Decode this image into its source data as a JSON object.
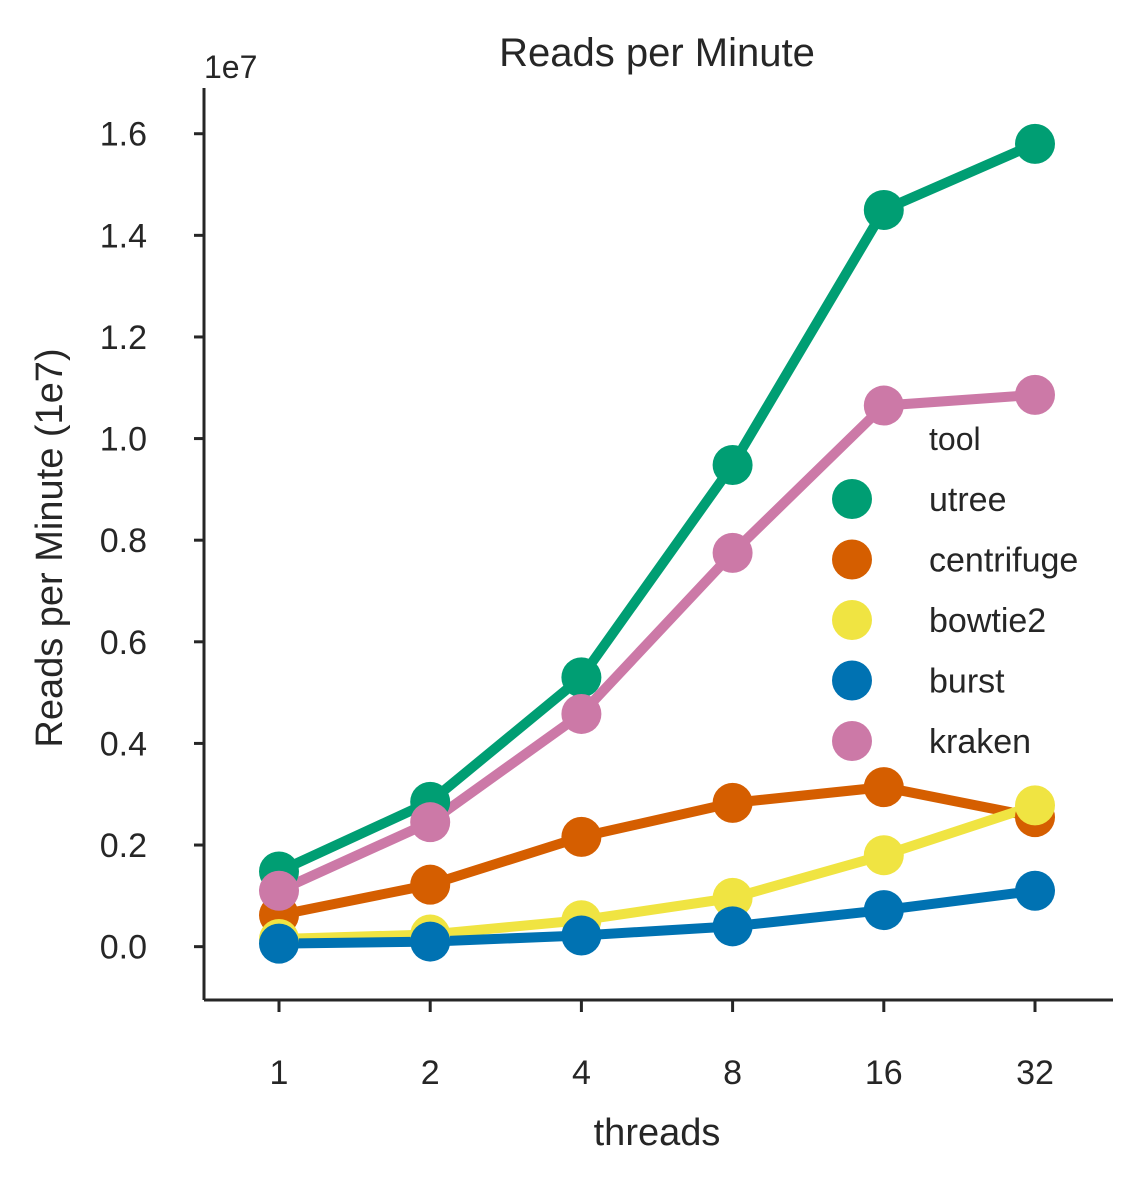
{
  "chart_data": {
    "type": "line",
    "title": "Reads per Minute",
    "xlabel": "threads",
    "ylabel": "Reads per Minute (1e7)",
    "y_offset_label": "1e7",
    "categories": [
      "1",
      "2",
      "4",
      "8",
      "16",
      "32"
    ],
    "y_ticks": [
      "0.0",
      "0.2",
      "0.4",
      "0.6",
      "0.8",
      "1.0",
      "1.2",
      "1.4",
      "1.6"
    ],
    "ylim": [
      -0.105,
      1.69
    ],
    "grid": false,
    "legend": {
      "title": "tool",
      "placement": "center-right"
    },
    "series": [
      {
        "name": "utree",
        "color": "#009E73",
        "values": [
          0.148,
          0.285,
          0.53,
          0.948,
          1.45,
          1.58
        ]
      },
      {
        "name": "centrifuge",
        "color": "#D55E00",
        "values": [
          0.062,
          0.122,
          0.216,
          0.283,
          0.314,
          0.255
        ]
      },
      {
        "name": "bowtie2",
        "color": "#F0E442",
        "values": [
          0.015,
          0.024,
          0.052,
          0.096,
          0.18,
          0.278
        ]
      },
      {
        "name": "burst",
        "color": "#0072B2",
        "values": [
          0.006,
          0.01,
          0.022,
          0.04,
          0.072,
          0.11
        ]
      },
      {
        "name": "kraken",
        "color": "#CC79A7",
        "values": [
          0.11,
          0.245,
          0.458,
          0.775,
          1.065,
          1.086
        ]
      }
    ]
  }
}
